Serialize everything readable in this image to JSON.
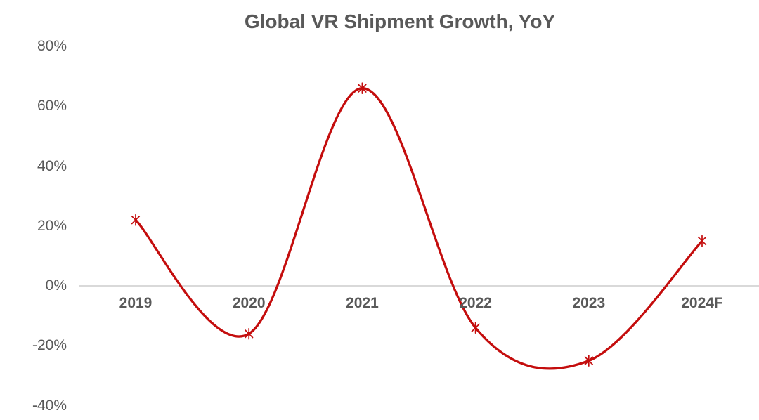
{
  "chart_data": {
    "type": "line",
    "title": "Global VR Shipment Growth, YoY",
    "categories": [
      "2019",
      "2020",
      "2021",
      "2022",
      "2023",
      "2024F"
    ],
    "values": [
      22,
      -16,
      66,
      -14,
      -25,
      15
    ],
    "unit": "%",
    "ylim": [
      -40,
      80
    ],
    "ytick_step": 20,
    "ytick_labels": [
      "80%",
      "60%",
      "40%",
      "20%",
      "0%",
      "-20%",
      "-40%"
    ],
    "xlabel": "",
    "ylabel": "",
    "legend": "none",
    "grid": "zero-axis-line-only",
    "line_style": "smoothed-spline",
    "marker_style": "asterisk",
    "line_color": "#C40D0D",
    "marker_color": "#C40D0D",
    "axis_line_color": "#D9D9D9",
    "text_color": "#595959",
    "background_color": "#FFFFFF"
  }
}
